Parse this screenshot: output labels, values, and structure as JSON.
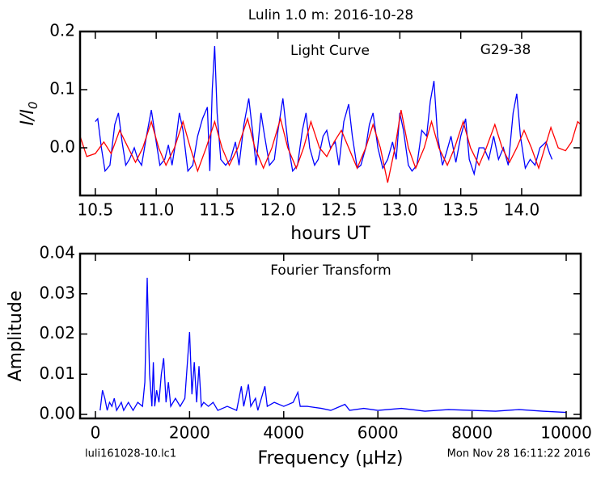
{
  "chart_data": [
    {
      "type": "line",
      "title": "Lulin 1.0 m:  2016-10-28",
      "annotations": [
        "Light Curve",
        "G29-38"
      ],
      "xlabel": "hours UT",
      "ylabel": "I/I",
      "ylabel_sub": "0",
      "xlim": [
        10.375,
        14.485
      ],
      "ylim": [
        -0.082,
        0.2
      ],
      "xticks": [
        10.5,
        {
          "value": 11,
          "label": "11.0"
        },
        11.5,
        {
          "value": 12,
          "label": "12.0"
        },
        12.5,
        {
          "value": 13,
          "label": "13.0"
        },
        13.5,
        {
          "value": 14,
          "label": "14.0"
        }
      ],
      "yticks": [
        {
          "value": 0,
          "label": "0.0"
        },
        0.1,
        0.2
      ],
      "series": [
        {
          "color": "#0000ff",
          "x": [
            10.5,
            10.52,
            10.55,
            10.58,
            10.62,
            10.66,
            10.69,
            10.72,
            10.75,
            10.78,
            10.82,
            10.85,
            10.88,
            10.92,
            10.96,
            11.0,
            11.03,
            11.07,
            11.1,
            11.13,
            11.16,
            11.19,
            11.22,
            11.26,
            11.3,
            11.34,
            11.38,
            11.42,
            11.44,
            11.46,
            11.48,
            11.5,
            11.53,
            11.57,
            11.61,
            11.65,
            11.68,
            11.72,
            11.76,
            11.79,
            11.82,
            11.86,
            11.89,
            11.93,
            11.97,
            12.0,
            12.04,
            12.08,
            12.12,
            12.16,
            12.2,
            12.23,
            12.26,
            12.3,
            12.33,
            12.37,
            12.4,
            12.43,
            12.47,
            12.5,
            12.54,
            12.58,
            12.61,
            12.65,
            12.68,
            12.72,
            12.75,
            12.78,
            12.82,
            12.86,
            12.9,
            12.94,
            12.97,
            13.0,
            13.03,
            13.07,
            13.1,
            13.14,
            13.18,
            13.22,
            13.25,
            13.28,
            13.31,
            13.35,
            13.38,
            13.42,
            13.46,
            13.5,
            13.54,
            13.57,
            13.61,
            13.65,
            13.69,
            13.73,
            13.77,
            13.81,
            13.85,
            13.89,
            13.93,
            13.96,
            13.99,
            14.03,
            14.07,
            14.11,
            14.15,
            14.2,
            14.23,
            14.25
          ],
          "values": [
            0.045,
            0.05,
            0.0,
            -0.04,
            -0.03,
            0.04,
            0.06,
            0.01,
            -0.03,
            -0.02,
            0.0,
            -0.02,
            -0.03,
            0.02,
            0.065,
            0.01,
            -0.03,
            -0.02,
            0.005,
            -0.03,
            0.01,
            0.06,
            0.03,
            -0.04,
            -0.03,
            0.02,
            0.05,
            0.07,
            -0.04,
            0.1,
            0.175,
            0.06,
            -0.02,
            -0.03,
            -0.02,
            0.01,
            -0.03,
            0.04,
            0.085,
            0.03,
            -0.03,
            0.06,
            0.02,
            -0.03,
            -0.02,
            0.03,
            0.085,
            0.01,
            -0.04,
            -0.03,
            0.03,
            0.06,
            0.0,
            -0.03,
            -0.02,
            0.02,
            0.03,
            0.0,
            0.01,
            -0.03,
            0.045,
            0.075,
            0.02,
            -0.035,
            -0.03,
            0.0,
            0.04,
            0.06,
            0.0,
            -0.035,
            -0.02,
            0.01,
            -0.02,
            0.06,
            0.03,
            -0.03,
            -0.04,
            -0.03,
            0.03,
            0.02,
            0.08,
            0.115,
            0.02,
            -0.03,
            -0.01,
            0.02,
            -0.025,
            0.02,
            0.05,
            -0.02,
            -0.045,
            0.0,
            0.0,
            -0.02,
            0.02,
            -0.02,
            0.0,
            -0.03,
            0.06,
            0.093,
            0.02,
            -0.035,
            -0.02,
            -0.03,
            0.0,
            0.01,
            -0.01,
            -0.02
          ]
        },
        {
          "color": "#ff0000",
          "x": [
            10.375,
            10.43,
            10.5,
            10.57,
            10.63,
            10.7,
            10.77,
            10.83,
            10.89,
            10.96,
            11.02,
            11.08,
            11.15,
            11.22,
            11.28,
            11.34,
            11.41,
            11.48,
            11.54,
            11.6,
            11.67,
            11.75,
            11.81,
            11.88,
            11.95,
            12.02,
            12.08,
            12.15,
            12.21,
            12.27,
            12.34,
            12.4,
            12.46,
            12.52,
            12.58,
            12.65,
            12.72,
            12.78,
            12.84,
            12.9,
            12.96,
            13.01,
            13.07,
            13.13,
            13.2,
            13.26,
            13.32,
            13.39,
            13.45,
            13.52,
            13.58,
            13.65,
            13.71,
            13.78,
            13.84,
            13.9,
            13.96,
            14.02,
            14.08,
            14.14,
            14.19,
            14.24,
            14.3,
            14.36,
            14.41,
            14.46,
            14.485
          ],
          "values": [
            0.02,
            -0.015,
            -0.01,
            0.01,
            -0.01,
            0.03,
            0.0,
            -0.025,
            0.0,
            0.045,
            0.0,
            -0.03,
            0.0,
            0.045,
            0.0,
            -0.04,
            0.0,
            0.045,
            0.0,
            -0.03,
            0.0,
            0.05,
            0.0,
            -0.035,
            0.0,
            0.05,
            0.0,
            -0.035,
            0.0,
            0.045,
            0.0,
            -0.015,
            0.01,
            0.03,
            0.0,
            -0.035,
            0.0,
            0.04,
            0.0,
            -0.06,
            0.0,
            0.065,
            0.0,
            -0.035,
            0.0,
            0.045,
            0.0,
            -0.03,
            0.0,
            0.045,
            0.0,
            -0.03,
            0.0,
            0.04,
            0.0,
            -0.025,
            0.0,
            0.03,
            0.0,
            -0.035,
            0.0,
            0.035,
            0.0,
            -0.005,
            0.01,
            0.045,
            0.04
          ]
        }
      ]
    },
    {
      "type": "line",
      "annotations": [
        "Fourier Transform",
        "luli161028-10.lc1",
        "Mon Nov 28 16:11:22 2016"
      ],
      "xlabel": "Frequency (μHz)",
      "ylabel": "Amplitude",
      "xlim": [
        -326,
        10309
      ],
      "ylim": [
        -0.001,
        0.04
      ],
      "xticks": [
        0,
        2000,
        4000,
        6000,
        8000,
        10000
      ],
      "yticks": [
        {
          "value": 0,
          "label": "0.00"
        },
        0.01,
        0.02,
        0.03,
        0.04
      ],
      "series": [
        {
          "color": "#0000ff",
          "x": [
            100,
            150,
            200,
            250,
            300,
            350,
            400,
            450,
            550,
            600,
            700,
            800,
            900,
            1000,
            1050,
            1100,
            1150,
            1200,
            1230,
            1260,
            1300,
            1350,
            1400,
            1450,
            1500,
            1550,
            1600,
            1700,
            1800,
            1900,
            2000,
            2050,
            2100,
            2150,
            2200,
            2250,
            2300,
            2400,
            2500,
            2600,
            2800,
            3000,
            3100,
            3150,
            3250,
            3300,
            3400,
            3450,
            3500,
            3600,
            3650,
            3800,
            4000,
            4200,
            4300,
            4350,
            4500,
            4800,
            5000,
            5300,
            5400,
            5700,
            6000,
            6500,
            7000,
            7500,
            8000,
            8500,
            9000,
            9500,
            10000
          ],
          "values": [
            0.001,
            0.006,
            0.004,
            0.001,
            0.003,
            0.002,
            0.004,
            0.001,
            0.003,
            0.001,
            0.003,
            0.001,
            0.003,
            0.002,
            0.008,
            0.034,
            0.01,
            0.002,
            0.013,
            0.002,
            0.006,
            0.003,
            0.01,
            0.014,
            0.003,
            0.008,
            0.002,
            0.004,
            0.002,
            0.004,
            0.0205,
            0.005,
            0.013,
            0.003,
            0.012,
            0.002,
            0.003,
            0.002,
            0.003,
            0.001,
            0.002,
            0.001,
            0.007,
            0.002,
            0.0075,
            0.002,
            0.004,
            0.001,
            0.003,
            0.007,
            0.002,
            0.003,
            0.002,
            0.003,
            0.0055,
            0.002,
            0.002,
            0.0015,
            0.001,
            0.0025,
            0.001,
            0.0015,
            0.001,
            0.0015,
            0.0008,
            0.0012,
            0.001,
            0.0008,
            0.0012,
            0.0008,
            0.0005
          ]
        }
      ]
    }
  ]
}
